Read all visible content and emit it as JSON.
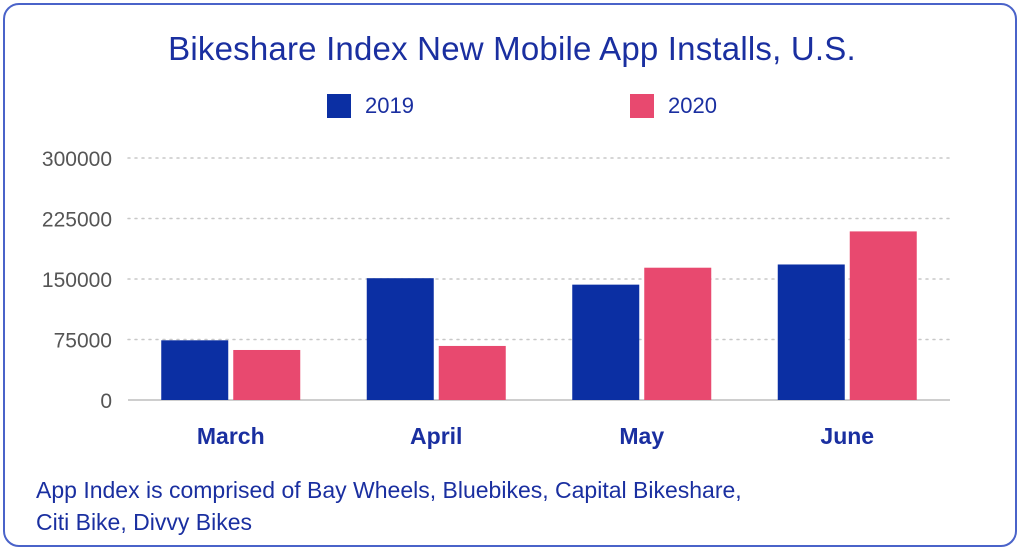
{
  "chart_data": {
    "type": "bar",
    "title": "Bikeshare Index New Mobile App Installs, U.S.",
    "categories": [
      "March",
      "April",
      "May",
      "June"
    ],
    "series": [
      {
        "name": "2019",
        "color": "#0b2fa3",
        "values": [
          74000,
          151000,
          143000,
          168000
        ]
      },
      {
        "name": "2020",
        "color": "#e8496f",
        "values": [
          62000,
          67000,
          164000,
          209000
        ]
      }
    ],
    "ylim": [
      0,
      300000
    ],
    "yticks": [
      "0",
      "75000",
      "150000",
      "225000",
      "300000"
    ],
    "grid": true,
    "legend_position": "top-center"
  },
  "footnote": {
    "line1": "App Index is comprised of Bay Wheels, Bluebikes, Capital Bikeshare,",
    "line2": "Citi Bike, Divvy Bikes"
  },
  "colors": {
    "text": "#1a2fa0",
    "tick": "#555555",
    "grid": "#c8c8c8",
    "border": "#4a63c9"
  }
}
